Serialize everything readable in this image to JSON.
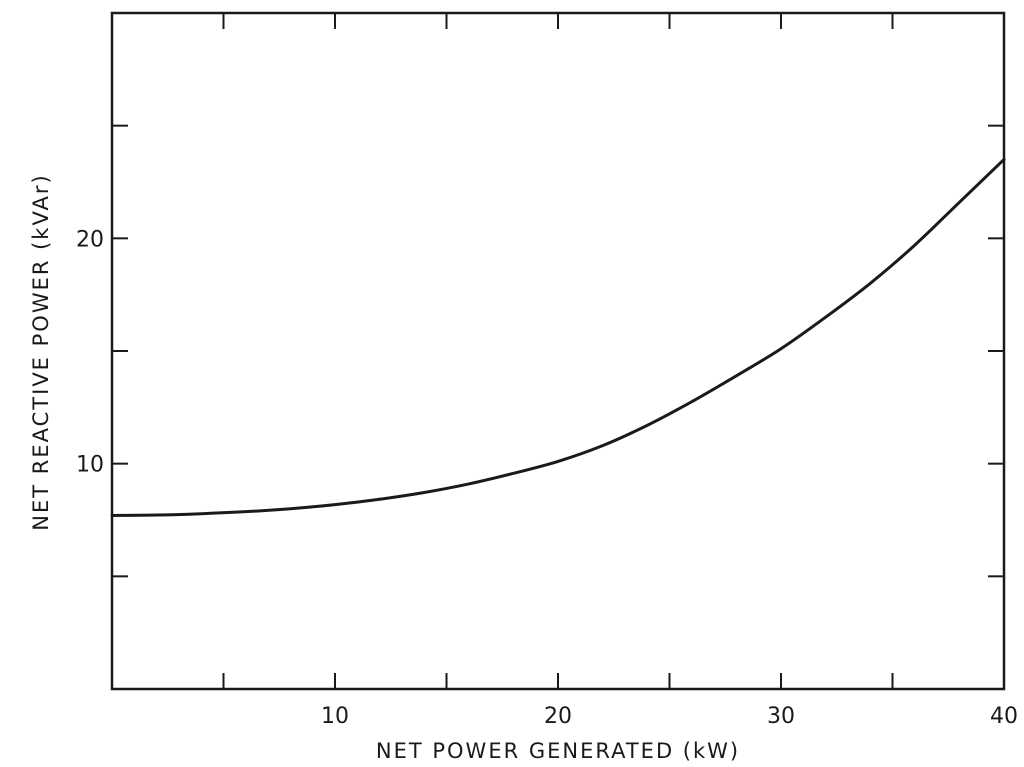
{
  "chart_data": {
    "type": "line",
    "title": "",
    "xlabel": "NET POWER GENERATED (kW)",
    "ylabel": "NET REACTIVE POWER (kVAr)",
    "xlim": [
      0,
      40
    ],
    "ylim": [
      0,
      30
    ],
    "x_ticks_major": [
      10,
      20,
      30,
      40
    ],
    "x_tick_labels": [
      "10",
      "20",
      "30",
      "40"
    ],
    "x_ticks_minor": [
      5,
      15,
      25,
      35
    ],
    "y_ticks_major": [
      10,
      20
    ],
    "y_tick_labels": [
      "10",
      "20"
    ],
    "y_ticks_minor": [
      5,
      15,
      25
    ],
    "grid": false,
    "series": [
      {
        "color": "#1a1a1a",
        "x": [
          0,
          2,
          4,
          6,
          8,
          10,
          12,
          14,
          16,
          18,
          20,
          22,
          24,
          26,
          28,
          30,
          32,
          34,
          36,
          38,
          40
        ],
        "y": [
          7.7,
          7.72,
          7.78,
          7.87,
          8.0,
          8.18,
          8.42,
          8.72,
          9.1,
          9.57,
          10.1,
          10.8,
          11.7,
          12.75,
          13.9,
          15.1,
          16.5,
          18.0,
          19.7,
          21.6,
          23.5
        ]
      }
    ]
  }
}
